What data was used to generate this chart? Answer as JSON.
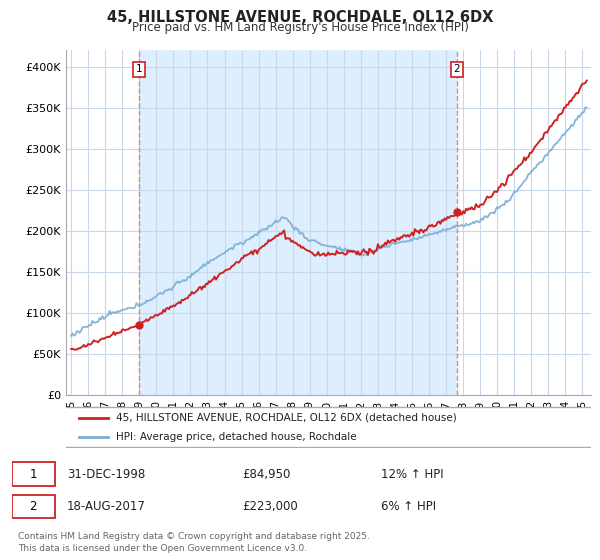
{
  "title": "45, HILLSTONE AVENUE, ROCHDALE, OL12 6DX",
  "subtitle": "Price paid vs. HM Land Registry's House Price Index (HPI)",
  "background_color": "#ffffff",
  "plot_bg_color": "#ffffff",
  "grid_color": "#c8d8e8",
  "shade_color": "#ddeeff",
  "legend_label_red": "45, HILLSTONE AVENUE, ROCHDALE, OL12 6DX (detached house)",
  "legend_label_blue": "HPI: Average price, detached house, Rochdale",
  "red_color": "#cc2222",
  "blue_color": "#7aadd4",
  "dashed_color": "#dd8888",
  "marker1_date_x": 1999.0,
  "marker1_y": 84950,
  "marker2_date_x": 2017.63,
  "marker2_y": 223000,
  "ylim_min": 0,
  "ylim_max": 420000,
  "yticks": [
    0,
    50000,
    100000,
    150000,
    200000,
    250000,
    300000,
    350000,
    400000
  ],
  "ytick_labels": [
    "£0",
    "£50K",
    "£100K",
    "£150K",
    "£200K",
    "£250K",
    "£300K",
    "£350K",
    "£400K"
  ],
  "xlim_min": 1994.7,
  "xlim_max": 2025.5,
  "xtick_labels": [
    "95",
    "96",
    "97",
    "98",
    "99",
    "00",
    "01",
    "02",
    "03",
    "04",
    "05",
    "06",
    "07",
    "08",
    "09",
    "10",
    "11",
    "12",
    "13",
    "14",
    "15",
    "16",
    "17",
    "18",
    "19",
    "20",
    "21",
    "22",
    "23",
    "24",
    "25"
  ],
  "footnote": "Contains HM Land Registry data © Crown copyright and database right 2025.\nThis data is licensed under the Open Government Licence v3.0."
}
